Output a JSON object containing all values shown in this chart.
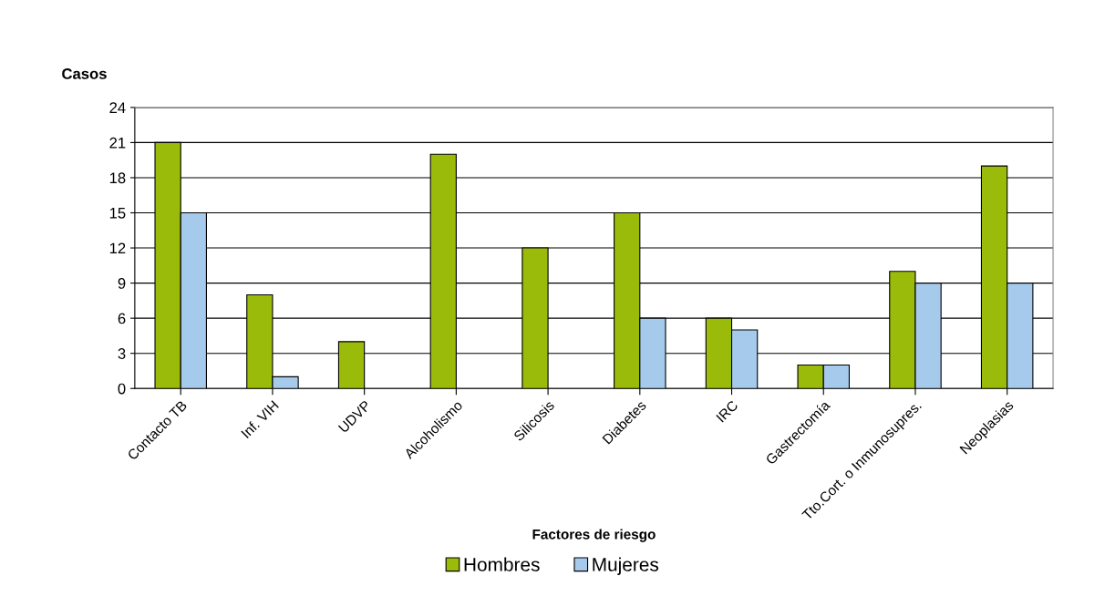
{
  "chart_data": {
    "type": "bar",
    "xlabel": "Factores de riesgo",
    "ylabel": "Casos",
    "categories": [
      "Contacto TB",
      "Inf. VIH",
      "UDVP",
      "Alcoholismo",
      "Silicosis",
      "Diabetes",
      "IRC",
      "Gastrectomía",
      "Tto.Cort. o Inmunosupres.",
      "Neoplasias"
    ],
    "series": [
      {
        "name": "Hombres",
        "color": "#9bbb0a",
        "values": [
          21,
          8,
          4,
          20,
          12,
          15,
          6,
          2,
          10,
          19
        ]
      },
      {
        "name": "Mujeres",
        "color": "#a6caec",
        "values": [
          15,
          1,
          null,
          null,
          null,
          6,
          5,
          2,
          9,
          9
        ]
      }
    ],
    "ylim": [
      0,
      24
    ],
    "yticks": [
      0,
      3,
      6,
      9,
      12,
      15,
      18,
      21,
      24
    ],
    "grid": "y",
    "legend": "bottom"
  }
}
